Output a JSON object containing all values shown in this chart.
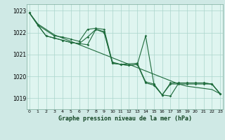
{
  "background_color": "#cfe9e5",
  "plot_bg_color": "#dff5f0",
  "grid_color": "#aad4cc",
  "line_color": "#1e6b3c",
  "xlabel": "Graphe pression niveau de la mer (hPa)",
  "ylim": [
    1018.5,
    1023.3
  ],
  "yticks": [
    1019,
    1020,
    1021,
    1022,
    1023
  ],
  "xlim": [
    -0.3,
    23.3
  ],
  "xticks": [
    0,
    1,
    2,
    3,
    4,
    5,
    6,
    7,
    8,
    9,
    10,
    11,
    12,
    13,
    14,
    15,
    16,
    17,
    18,
    19,
    20,
    21,
    22,
    23
  ],
  "s1_x": [
    0,
    1,
    2,
    3,
    4,
    5,
    6,
    7,
    8,
    9,
    10,
    11,
    12,
    13,
    14,
    15,
    16,
    17,
    18,
    19,
    20,
    21,
    22,
    23
  ],
  "s1_y": [
    1022.9,
    1022.4,
    1022.15,
    1021.9,
    1021.75,
    1021.6,
    1021.45,
    1021.3,
    1021.15,
    1021.0,
    1020.85,
    1020.7,
    1020.55,
    1020.4,
    1020.25,
    1020.1,
    1019.95,
    1019.8,
    1019.65,
    1019.55,
    1019.5,
    1019.45,
    1019.4,
    1019.2
  ],
  "s2_x": [
    0,
    1,
    3,
    4,
    5,
    6,
    7,
    8,
    9,
    10,
    11,
    13,
    14,
    15,
    16,
    17,
    18,
    19,
    20,
    21,
    22,
    23
  ],
  "s2_y": [
    1022.9,
    1022.35,
    1021.85,
    1021.8,
    1021.7,
    1021.6,
    1022.15,
    1022.2,
    1022.15,
    1020.65,
    1020.55,
    1020.6,
    1019.75,
    1019.65,
    1019.15,
    1019.7,
    1019.7,
    1019.7,
    1019.7,
    1019.7,
    1019.65,
    1019.2
  ],
  "s3_x": [
    0,
    1,
    2,
    3,
    4,
    5,
    6,
    7,
    8,
    9,
    10,
    11,
    12,
    13,
    14,
    15,
    16,
    17,
    18,
    19,
    20,
    21,
    22,
    23
  ],
  "s3_y": [
    1022.9,
    1022.35,
    1021.85,
    1021.75,
    1021.65,
    1021.55,
    1021.5,
    1021.8,
    1022.15,
    1022.0,
    1020.6,
    1020.55,
    1020.5,
    1020.55,
    1019.7,
    1019.6,
    1019.15,
    1019.1,
    1019.7,
    1019.7,
    1019.7,
    1019.7,
    1019.65,
    1019.2
  ],
  "s4_x": [
    0,
    1,
    2,
    3,
    4,
    5,
    6,
    7,
    8,
    9,
    10,
    11,
    12,
    13,
    14,
    15,
    16,
    17,
    18,
    19,
    20,
    21,
    22,
    23
  ],
  "s4_y": [
    1022.9,
    1022.35,
    1021.85,
    1021.75,
    1021.65,
    1021.55,
    1021.5,
    1021.45,
    1022.15,
    1022.05,
    1020.6,
    1020.55,
    1020.5,
    1020.55,
    1021.85,
    1019.65,
    1019.15,
    1019.65,
    1019.65,
    1019.65,
    1019.65,
    1019.65,
    1019.65,
    1019.2
  ]
}
